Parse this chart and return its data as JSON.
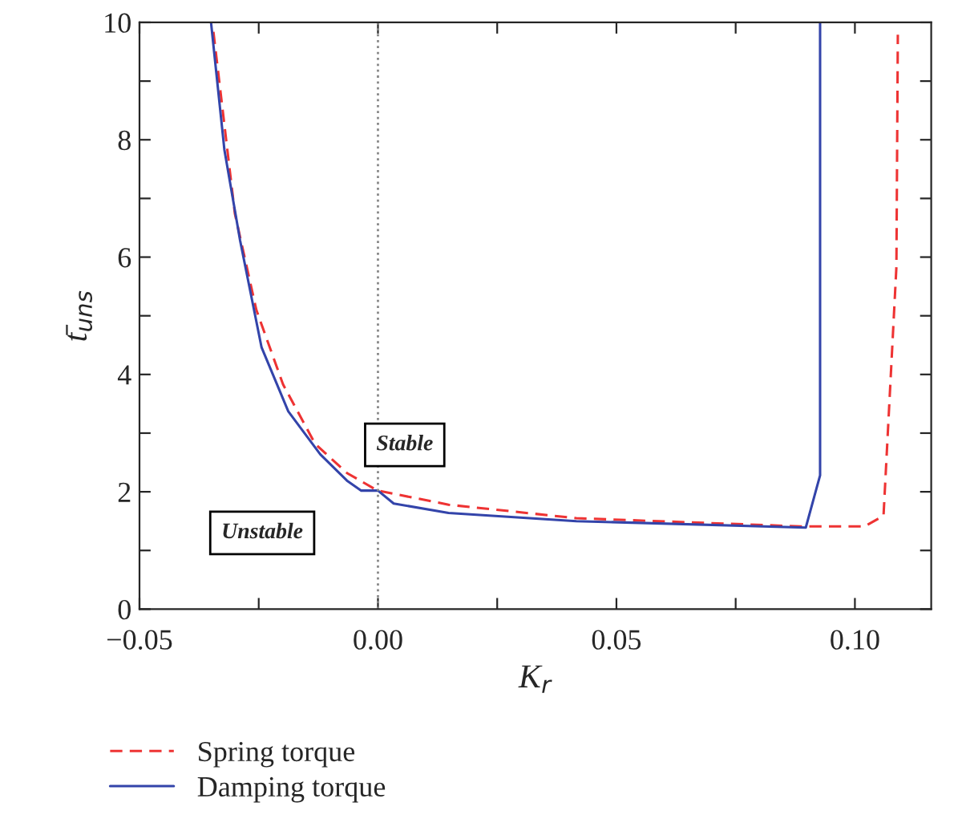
{
  "chart_data": {
    "type": "line",
    "xlabel": "K$_{r}$",
    "ylabel": "t̄$_{uns}$",
    "xlim": [
      -0.05,
      0.116
    ],
    "ylim": [
      0,
      10
    ],
    "xticks": [
      {
        "value": -0.05,
        "label": "−0.05"
      },
      {
        "value": -0.025,
        "label": null
      },
      {
        "value": 0,
        "label": "0.00"
      },
      {
        "value": 0.025,
        "label": null
      },
      {
        "value": 0.05,
        "label": "0.05"
      },
      {
        "value": 0.075,
        "label": null
      },
      {
        "value": 0.1,
        "label": "0.10"
      }
    ],
    "yticks": [
      0,
      {
        "value": 1,
        "label": null
      },
      2,
      {
        "value": 3,
        "label": null
      },
      4,
      {
        "value": 5,
        "label": null
      },
      6,
      {
        "value": 7,
        "label": null
      },
      8,
      {
        "value": 9,
        "label": null
      },
      10
    ],
    "series": [
      {
        "name": "Spring torque",
        "color": "#ee3333",
        "line_style": "dashed",
        "x": [
          -0.0345,
          -0.03,
          -0.0255,
          -0.0199,
          -0.0132,
          -0.0065,
          -0.0001,
          0.0148,
          0.0416,
          0.0886,
          0.102,
          0.106,
          0.1087,
          0.109
        ],
        "values": [
          9.84,
          6.74,
          5.1,
          3.83,
          2.82,
          2.32,
          2.02,
          1.78,
          1.55,
          1.41,
          1.41,
          1.59,
          5.83,
          9.79
        ]
      },
      {
        "name": "Damping torque",
        "color": "#3344aa",
        "line_style": "solid",
        "x": [
          -0.035,
          -0.0322,
          -0.0289,
          -0.0244,
          -0.0188,
          -0.0121,
          -0.0065,
          -0.0035,
          0.0,
          0.0033,
          0.0148,
          0.0416,
          0.0897,
          0.0927,
          0.0927
        ],
        "values": [
          10.0,
          7.83,
          6.28,
          4.46,
          3.37,
          2.64,
          2.19,
          2.02,
          2.02,
          1.8,
          1.64,
          1.5,
          1.39,
          2.28,
          10.0
        ]
      }
    ],
    "ref_lines": [
      {
        "axis": "x",
        "value": 0,
        "color": "#888888",
        "line_style": "dotted"
      }
    ],
    "annotations": [
      "Stable",
      "Unstable"
    ],
    "legend": "bottom",
    "grid": false
  }
}
